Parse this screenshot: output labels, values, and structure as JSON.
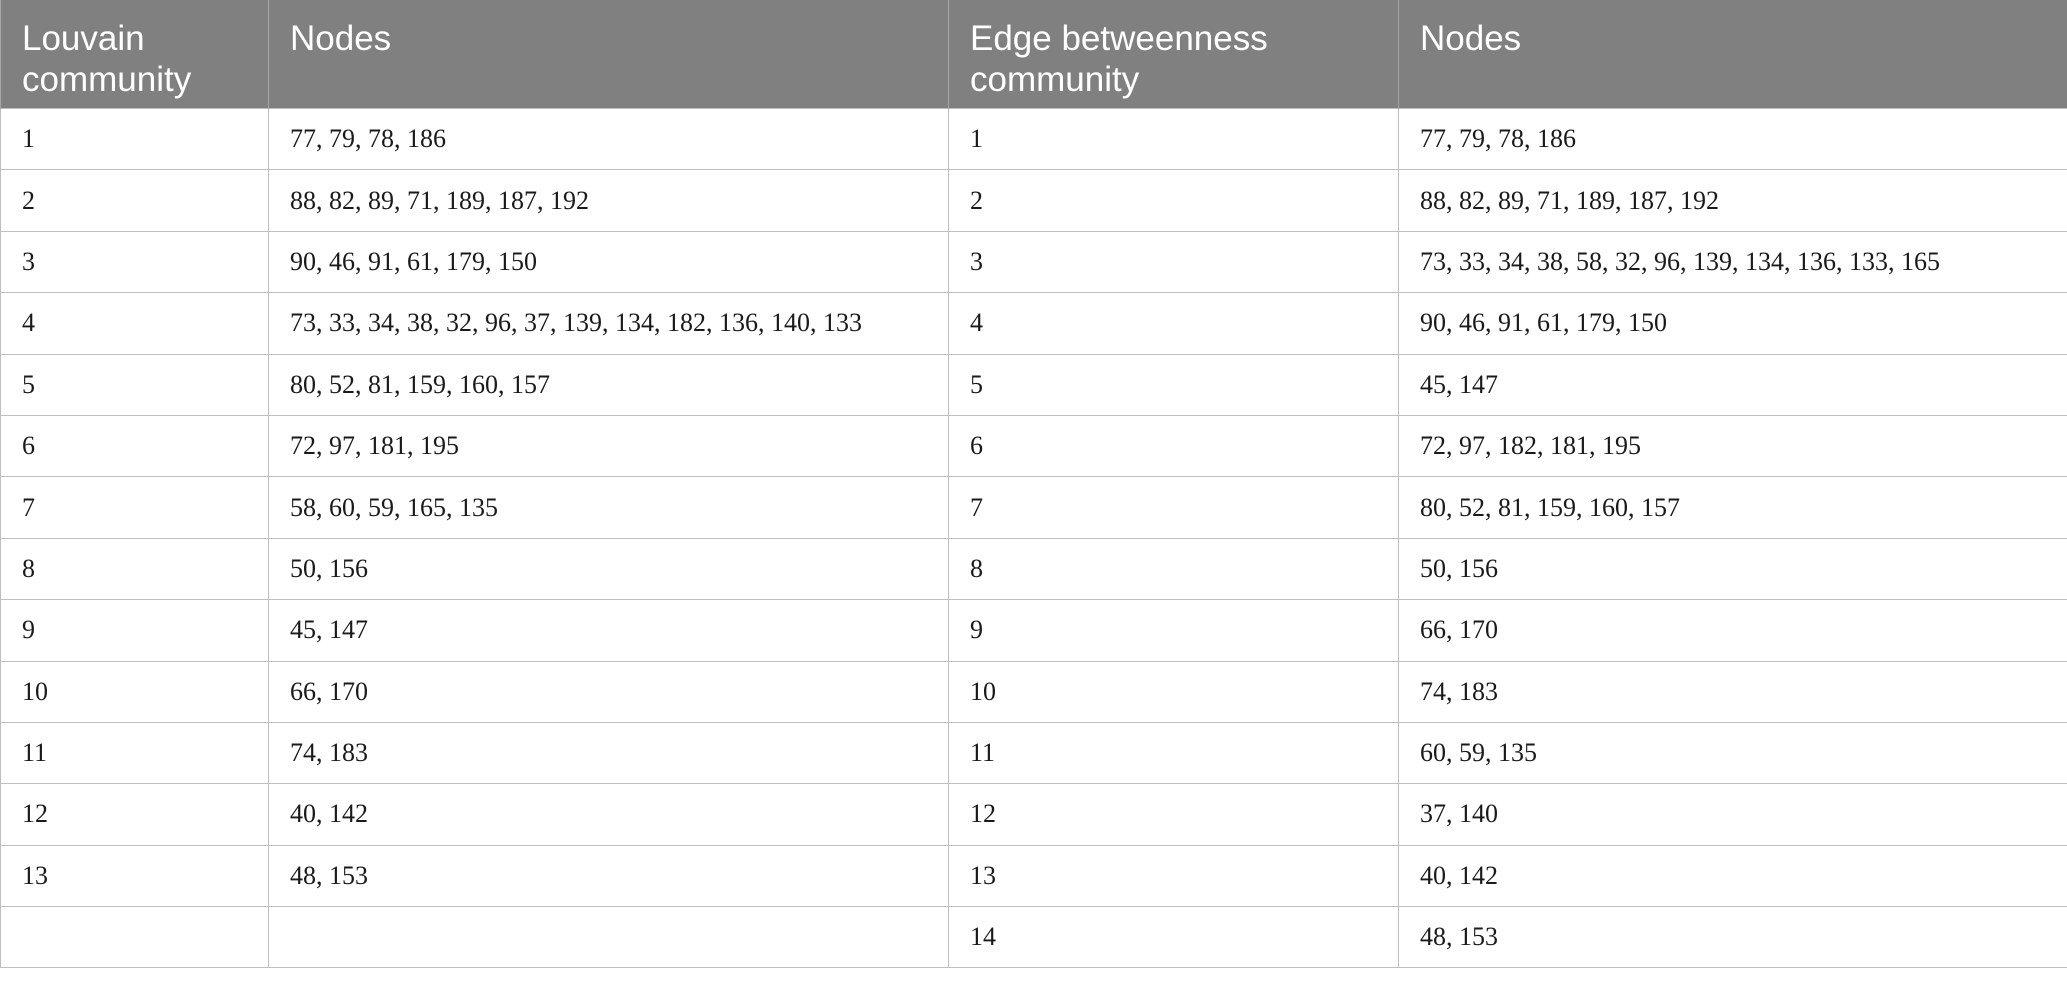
{
  "table": {
    "headers": [
      "Louvain community",
      "Nodes",
      "Edge betweenness community",
      "Nodes"
    ],
    "rows": [
      [
        "1",
        "77, 79, 78, 186",
        "1",
        "77, 79, 78, 186"
      ],
      [
        "2",
        "88, 82, 89, 71, 189, 187, 192",
        "2",
        "88, 82, 89, 71, 189, 187, 192"
      ],
      [
        "3",
        "90, 46, 91, 61, 179, 150",
        "3",
        "73, 33, 34, 38, 58, 32, 96, 139, 134, 136, 133, 165"
      ],
      [
        "4",
        "73, 33, 34, 38, 32, 96, 37, 139, 134, 182, 136, 140, 133",
        "4",
        "90, 46, 91, 61, 179, 150"
      ],
      [
        "5",
        "80, 52, 81, 159, 160, 157",
        "5",
        "45, 147"
      ],
      [
        "6",
        "72, 97, 181, 195",
        "6",
        "72, 97, 182, 181, 195"
      ],
      [
        "7",
        "58, 60, 59, 165, 135",
        "7",
        "80, 52, 81, 159, 160, 157"
      ],
      [
        "8",
        "50, 156",
        "8",
        "50, 156"
      ],
      [
        "9",
        "45, 147",
        "9",
        "66, 170"
      ],
      [
        "10",
        "66, 170",
        "10",
        "74, 183"
      ],
      [
        "11",
        "74, 183",
        "11",
        "60, 59, 135"
      ],
      [
        "12",
        "40, 142",
        "12",
        "37, 140"
      ],
      [
        "13",
        "48, 153",
        "13",
        "40, 142"
      ],
      [
        "",
        "",
        "14",
        "48, 153"
      ]
    ]
  }
}
